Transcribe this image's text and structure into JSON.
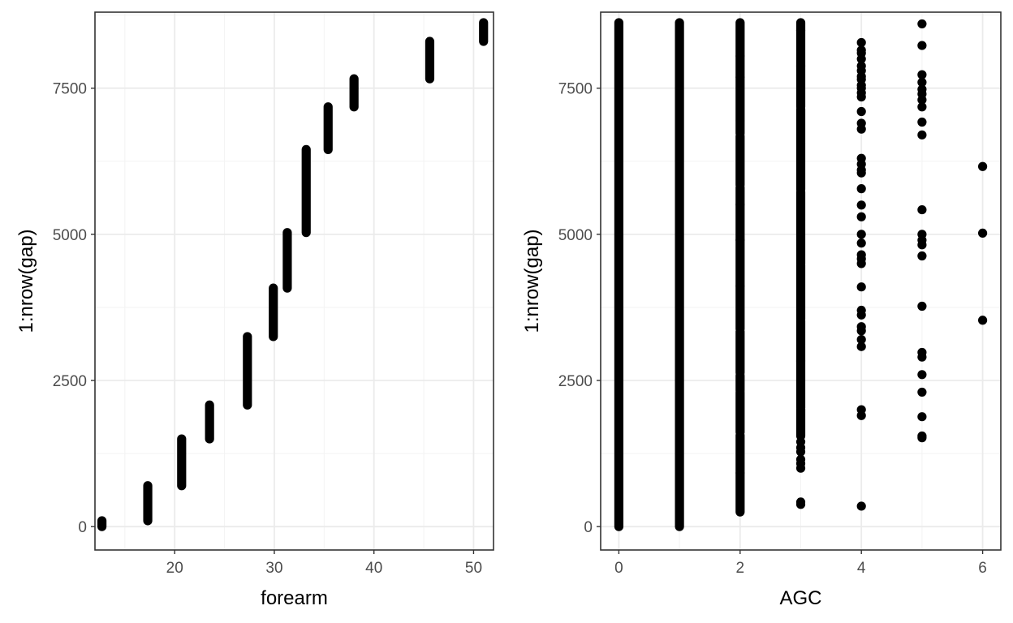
{
  "chart_data": [
    {
      "type": "scatter",
      "xlabel": "forearm",
      "ylabel": "1:nrow(gap)",
      "xlim": [
        12,
        52
      ],
      "ylim": [
        -400,
        8800
      ],
      "xticks": [
        "20",
        "30",
        "40",
        "50"
      ],
      "yticks": [
        "0",
        "2500",
        "5000",
        "7500"
      ],
      "xtick_values": [
        20,
        30,
        40,
        50
      ],
      "ytick_values": [
        0,
        2500,
        5000,
        7500
      ],
      "grid": true,
      "point_color": "#000000",
      "ranges": [
        {
          "x": 12.7,
          "y_from": 0,
          "y_to": 100
        },
        {
          "x": 17.3,
          "y_from": 100,
          "y_to": 700
        },
        {
          "x": 20.7,
          "y_from": 700,
          "y_to": 1500
        },
        {
          "x": 23.5,
          "y_from": 1500,
          "y_to": 2080
        },
        {
          "x": 27.3,
          "y_from": 2080,
          "y_to": 3250
        },
        {
          "x": 29.9,
          "y_from": 3250,
          "y_to": 4080
        },
        {
          "x": 31.3,
          "y_from": 4080,
          "y_to": 5030
        },
        {
          "x": 33.2,
          "y_from": 5030,
          "y_to": 6450
        },
        {
          "x": 35.4,
          "y_from": 6450,
          "y_to": 7180
        },
        {
          "x": 38.0,
          "y_from": 7180,
          "y_to": 7660
        },
        {
          "x": 45.6,
          "y_from": 7660,
          "y_to": 8300
        },
        {
          "x": 51.0,
          "y_from": 8300,
          "y_to": 8620
        }
      ]
    },
    {
      "type": "scatter",
      "xlabel": "AGC",
      "ylabel": "1:nrow(gap)",
      "xlim": [
        -0.3,
        6.3
      ],
      "ylim": [
        -400,
        8800
      ],
      "xticks": [
        "0",
        "2",
        "4",
        "6"
      ],
      "yticks": [
        "0",
        "2500",
        "5000",
        "7500"
      ],
      "xtick_values": [
        0,
        2,
        4,
        6
      ],
      "ytick_values": [
        0,
        2500,
        5000,
        7500
      ],
      "grid": true,
      "point_color": "#000000",
      "ranges": [
        {
          "x": 0,
          "y_from": 0,
          "y_to": 8620
        },
        {
          "x": 1,
          "y_from": 0,
          "y_to": 8620
        }
      ],
      "dense_columns": [
        {
          "x": 2,
          "y_from": 250,
          "y_to": 8620
        },
        {
          "x": 3,
          "y_from": 1550,
          "y_to": 8620
        }
      ],
      "points": [
        {
          "x": 3,
          "y": 380
        },
        {
          "x": 3,
          "y": 420
        },
        {
          "x": 3,
          "y": 1000
        },
        {
          "x": 3,
          "y": 1080
        },
        {
          "x": 3,
          "y": 1150
        },
        {
          "x": 3,
          "y": 1280
        },
        {
          "x": 3,
          "y": 1350
        },
        {
          "x": 3,
          "y": 1450
        },
        {
          "x": 4,
          "y": 350
        },
        {
          "x": 4,
          "y": 1900
        },
        {
          "x": 4,
          "y": 2000
        },
        {
          "x": 4,
          "y": 3080
        },
        {
          "x": 4,
          "y": 3200
        },
        {
          "x": 4,
          "y": 3350
        },
        {
          "x": 4,
          "y": 3420
        },
        {
          "x": 4,
          "y": 3620
        },
        {
          "x": 4,
          "y": 3700
        },
        {
          "x": 4,
          "y": 4100
        },
        {
          "x": 4,
          "y": 4500
        },
        {
          "x": 4,
          "y": 4580
        },
        {
          "x": 4,
          "y": 4650
        },
        {
          "x": 4,
          "y": 4850
        },
        {
          "x": 4,
          "y": 5000
        },
        {
          "x": 4,
          "y": 5300
        },
        {
          "x": 4,
          "y": 5500
        },
        {
          "x": 4,
          "y": 5780
        },
        {
          "x": 4,
          "y": 6050
        },
        {
          "x": 4,
          "y": 6100
        },
        {
          "x": 4,
          "y": 6200
        },
        {
          "x": 4,
          "y": 6300
        },
        {
          "x": 4,
          "y": 6800
        },
        {
          "x": 4,
          "y": 6900
        },
        {
          "x": 4,
          "y": 7100
        },
        {
          "x": 4,
          "y": 7350
        },
        {
          "x": 4,
          "y": 7420
        },
        {
          "x": 4,
          "y": 7500
        },
        {
          "x": 4,
          "y": 7550
        },
        {
          "x": 4,
          "y": 7650
        },
        {
          "x": 4,
          "y": 7700
        },
        {
          "x": 4,
          "y": 7800
        },
        {
          "x": 4,
          "y": 7880
        },
        {
          "x": 4,
          "y": 8000
        },
        {
          "x": 4,
          "y": 8100
        },
        {
          "x": 4,
          "y": 8150
        },
        {
          "x": 4,
          "y": 8280
        },
        {
          "x": 5,
          "y": 1520
        },
        {
          "x": 5,
          "y": 1550
        },
        {
          "x": 5,
          "y": 1880
        },
        {
          "x": 5,
          "y": 2300
        },
        {
          "x": 5,
          "y": 2600
        },
        {
          "x": 5,
          "y": 2900
        },
        {
          "x": 5,
          "y": 2980
        },
        {
          "x": 5,
          "y": 3770
        },
        {
          "x": 5,
          "y": 4630
        },
        {
          "x": 5,
          "y": 4820
        },
        {
          "x": 5,
          "y": 4900
        },
        {
          "x": 5,
          "y": 5000
        },
        {
          "x": 5,
          "y": 5420
        },
        {
          "x": 5,
          "y": 6700
        },
        {
          "x": 5,
          "y": 6920
        },
        {
          "x": 5,
          "y": 7180
        },
        {
          "x": 5,
          "y": 7300
        },
        {
          "x": 5,
          "y": 7400
        },
        {
          "x": 5,
          "y": 7480
        },
        {
          "x": 5,
          "y": 7600
        },
        {
          "x": 5,
          "y": 7730
        },
        {
          "x": 5,
          "y": 8230
        },
        {
          "x": 5,
          "y": 8600
        },
        {
          "x": 6,
          "y": 3530
        },
        {
          "x": 6,
          "y": 5020
        },
        {
          "x": 6,
          "y": 6160
        }
      ]
    }
  ]
}
